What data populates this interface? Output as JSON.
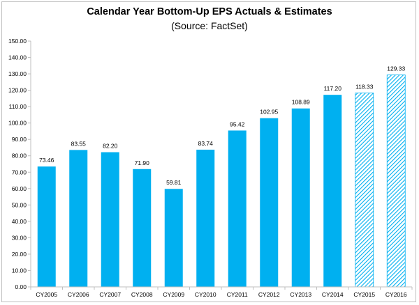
{
  "chart_data": {
    "type": "bar",
    "title": "Calendar Year Bottom-Up EPS Actuals & Estimates",
    "subtitle": "(Source: FactSet)",
    "categories": [
      "CY2005",
      "CY2006",
      "CY2007",
      "CY2008",
      "CY2009",
      "CY2010",
      "CY2011",
      "CY2012",
      "CY2013",
      "CY2014",
      "CY2015",
      "CY2016"
    ],
    "values": [
      73.46,
      83.55,
      82.2,
      71.9,
      59.81,
      83.74,
      95.42,
      102.95,
      108.89,
      117.2,
      118.33,
      129.33
    ],
    "data_labels": [
      "73.46",
      "83.55",
      "82.20",
      "71.90",
      "59.81",
      "83.74",
      "95.42",
      "102.95",
      "108.89",
      "117.20",
      "118.33",
      "129.33"
    ],
    "estimate": [
      false,
      false,
      false,
      false,
      false,
      false,
      false,
      false,
      false,
      false,
      true,
      true
    ],
    "y_ticks": [
      "0.00",
      "10.00",
      "20.00",
      "30.00",
      "40.00",
      "50.00",
      "60.00",
      "70.00",
      "80.00",
      "90.00",
      "100.00",
      "110.00",
      "120.00",
      "130.00",
      "140.00",
      "150.00"
    ],
    "ylim": [
      0,
      150
    ],
    "xlabel": "",
    "ylabel": "",
    "grid": false,
    "legend": "none",
    "colors": {
      "bar": "#00b0f0",
      "hatch": "#00b0f0",
      "axis": "#bfbfbf",
      "text": "#000000"
    }
  }
}
